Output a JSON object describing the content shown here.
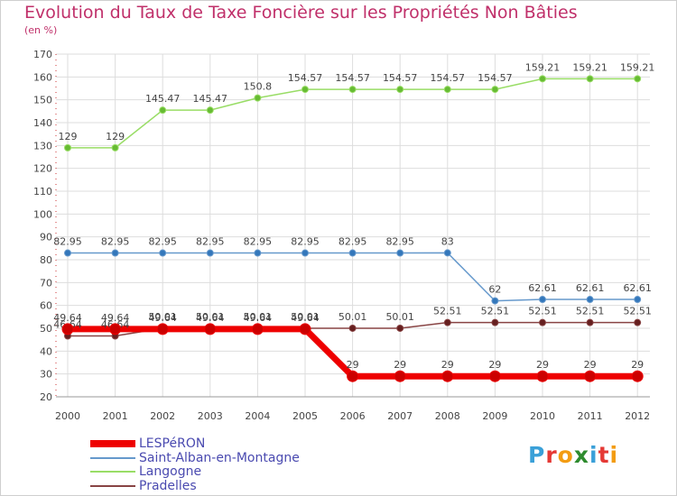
{
  "title": "Evolution du Taux de Taxe Foncière sur les Propriétés Non Bâties",
  "unit_label": "(en %)",
  "logo_letters": [
    "P",
    "r",
    "o",
    "x",
    "i",
    "t",
    "i"
  ],
  "logo_colors": [
    "#3aa0d8",
    "#e53935",
    "#f39c12",
    "#2e8b2e",
    "#3aa0d8",
    "#e53935",
    "#f39c12"
  ],
  "chart_data": {
    "type": "line",
    "categories": [
      "2000",
      "2001",
      "2002",
      "2003",
      "2004",
      "2005",
      "2006",
      "2007",
      "2008",
      "2009",
      "2010",
      "2011",
      "2012"
    ],
    "ylim": [
      20,
      170
    ],
    "yticks": [
      20,
      30,
      40,
      50,
      60,
      70,
      80,
      90,
      100,
      110,
      120,
      130,
      140,
      150,
      160,
      170
    ],
    "grid": true,
    "series": [
      {
        "name": "Langogne",
        "color": "#99dd66",
        "marker": "#66bb33",
        "width": 1.5,
        "values": [
          129,
          129,
          145.47,
          145.47,
          150.8,
          154.57,
          154.57,
          154.57,
          154.57,
          154.57,
          159.21,
          159.21,
          159.21
        ],
        "labels": [
          "129",
          "129",
          "145.47",
          "145.47",
          "150.8",
          "154.57",
          "154.57",
          "154.57",
          "154.57",
          "154.57",
          "159.21",
          "159.21",
          "159.21"
        ]
      },
      {
        "name": "Saint-Alban-en-Montagne",
        "color": "#6699cc",
        "marker": "#3377bb",
        "width": 1.5,
        "values": [
          82.95,
          82.95,
          82.95,
          82.95,
          82.95,
          82.95,
          82.95,
          82.95,
          83,
          62,
          62.61,
          62.61,
          62.61
        ],
        "labels": [
          "82.95",
          "82.95",
          "82.95",
          "82.95",
          "82.95",
          "82.95",
          "82.95",
          "82.95",
          "83",
          "62",
          "62.61",
          "62.61",
          "62.61"
        ]
      },
      {
        "name": "Pradelles",
        "color": "#884444",
        "marker": "#661f1f",
        "width": 1.5,
        "values": [
          46.64,
          46.64,
          50.01,
          50.01,
          50.01,
          50.01,
          50.01,
          50.01,
          52.51,
          52.51,
          52.51,
          52.51,
          52.51
        ],
        "labels": [
          "46.64",
          "46.64",
          "50.01",
          "50.01",
          "50.01",
          "50.01",
          "50.01",
          "50.01",
          "52.51",
          "52.51",
          "52.51",
          "52.51",
          "52.51"
        ]
      },
      {
        "name": "LESPéRON",
        "color": "#ee0000",
        "marker": "#cc0000",
        "width": 7,
        "values": [
          49.64,
          49.64,
          49.64,
          49.64,
          49.64,
          49.64,
          29,
          29,
          29,
          29,
          29,
          29,
          29
        ],
        "labels": [
          "49.64",
          "49.64",
          "49.64",
          "49.64",
          "49.64",
          "49.64",
          "29",
          "29",
          "29",
          "29",
          "29",
          "29",
          "29"
        ]
      }
    ],
    "legend": [
      "LESPéRON",
      "Saint-Alban-en-Montagne",
      "Langogne",
      "Pradelles"
    ],
    "legend_colors": [
      "#ee0000",
      "#6699cc",
      "#99dd66",
      "#884444"
    ],
    "legend_placement": "bottom-left"
  }
}
